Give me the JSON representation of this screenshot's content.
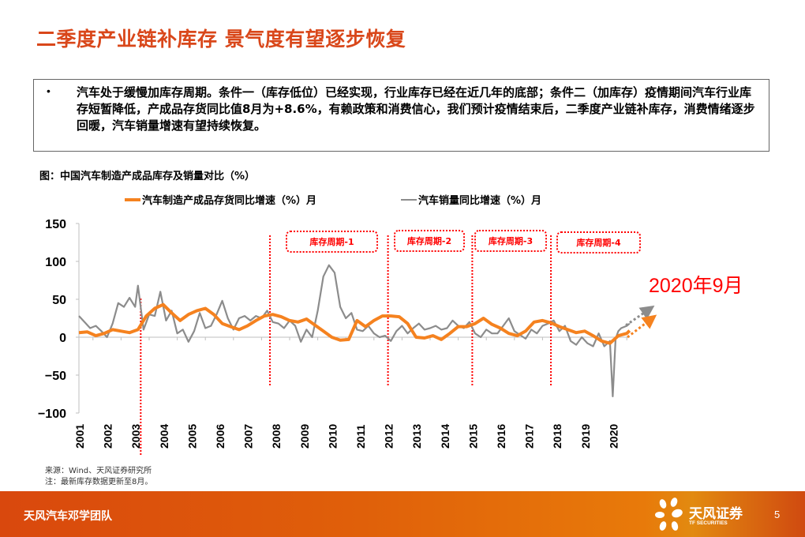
{
  "page": {
    "title": "二季度产业链补库存 景气度有望逐步恢复",
    "summary_bullet": "•",
    "summary_text": "汽车处于缓慢加库存周期。条件一（库存低位）已经实现，行业库存已经在近几年的底部；条件二（加库存）疫情期间汽车行业库存短暂降低，产成品存货同比值8月为+8.6%，有赖政策和消费信心，我们预计疫情结束后，二季度产业链补库存，消费情绪逐步回暖，汽车销量增速有望持续恢复。",
    "chart_caption": "图：中国汽车制造产成品库存及销量对比（%）",
    "source_line1": "来源：Wind、天风证券研究所",
    "source_line2": "注：最新库存数据更新至8月。",
    "annotation": "2020年9月"
  },
  "footer": {
    "team": "天风汽车邓学团队",
    "brand": "天风证券",
    "brand_sub": "TF SECURITIES",
    "page_number": "5"
  },
  "colors": {
    "title": "#d9471a",
    "inventory_series": "#f5821f",
    "sales_series": "#8c8c8c",
    "cycle_marker": "#ff0000",
    "footer": "#e0600a"
  },
  "chart_data": {
    "type": "line",
    "title": "图：中国汽车制造产成品库存及销量对比（%）",
    "xlabel": "",
    "ylabel": "",
    "ylim": [
      -100,
      150
    ],
    "yticks": [
      150,
      100,
      50,
      0,
      -50,
      -100
    ],
    "categories": [
      "2001",
      "2002",
      "2003",
      "2004",
      "2005",
      "2006",
      "2007",
      "2008",
      "2009",
      "2010",
      "2011",
      "2012",
      "2013",
      "2014",
      "2015",
      "2016",
      "2017",
      "2018",
      "2019",
      "2020"
    ],
    "legend_position": "top",
    "grid": false,
    "series": [
      {
        "name": "汽车制造产成品存货同比增速（%）月",
        "color": "#f5821f",
        "x": [
          2001.0,
          2001.3,
          2001.6,
          2001.9,
          2002.2,
          2002.5,
          2002.8,
          2003.1,
          2003.4,
          2003.7,
          2004.0,
          2004.3,
          2004.6,
          2004.9,
          2005.2,
          2005.5,
          2005.8,
          2006.1,
          2006.4,
          2006.7,
          2007.0,
          2007.3,
          2007.6,
          2007.9,
          2008.2,
          2008.5,
          2008.8,
          2009.1,
          2009.4,
          2009.7,
          2010.0,
          2010.3,
          2010.6,
          2010.9,
          2011.2,
          2011.5,
          2011.8,
          2012.1,
          2012.4,
          2012.7,
          2013.0,
          2013.3,
          2013.6,
          2013.9,
          2014.2,
          2014.5,
          2014.8,
          2015.1,
          2015.4,
          2015.7,
          2016.0,
          2016.3,
          2016.6,
          2016.9,
          2017.2,
          2017.5,
          2017.8,
          2018.1,
          2018.4,
          2018.7,
          2019.0,
          2019.3,
          2019.6,
          2019.9,
          2020.2,
          2020.5,
          2020.6
        ],
        "values": [
          6,
          7,
          2,
          5,
          10,
          8,
          6,
          10,
          28,
          38,
          43,
          32,
          22,
          30,
          35,
          38,
          30,
          18,
          14,
          10,
          15,
          22,
          28,
          30,
          27,
          22,
          20,
          24,
          16,
          8,
          0,
          -4,
          -3,
          22,
          14,
          22,
          28,
          28,
          27,
          18,
          0,
          -1,
          2,
          -3,
          5,
          14,
          14,
          18,
          25,
          17,
          12,
          5,
          2,
          8,
          20,
          22,
          19,
          14,
          10,
          6,
          8,
          2,
          -5,
          -8,
          2,
          5,
          8.6
        ]
      },
      {
        "name": "汽车销量同比增速（%）月",
        "color": "#8c8c8c",
        "x": [
          2001.0,
          2001.2,
          2001.4,
          2001.6,
          2001.8,
          2002.0,
          2002.2,
          2002.4,
          2002.6,
          2002.8,
          2003.0,
          2003.1,
          2003.3,
          2003.5,
          2003.7,
          2003.9,
          2004.1,
          2004.3,
          2004.5,
          2004.7,
          2004.9,
          2005.1,
          2005.3,
          2005.5,
          2005.7,
          2005.9,
          2006.1,
          2006.3,
          2006.5,
          2006.7,
          2006.9,
          2007.1,
          2007.3,
          2007.5,
          2007.7,
          2007.9,
          2008.1,
          2008.3,
          2008.5,
          2008.7,
          2008.9,
          2009.1,
          2009.3,
          2009.5,
          2009.7,
          2009.9,
          2010.1,
          2010.3,
          2010.5,
          2010.7,
          2010.9,
          2011.1,
          2011.3,
          2011.5,
          2011.7,
          2011.9,
          2012.1,
          2012.3,
          2012.5,
          2012.7,
          2012.9,
          2013.1,
          2013.3,
          2013.5,
          2013.7,
          2013.9,
          2014.1,
          2014.3,
          2014.5,
          2014.7,
          2014.9,
          2015.1,
          2015.3,
          2015.5,
          2015.7,
          2015.9,
          2016.1,
          2016.3,
          2016.5,
          2016.7,
          2016.9,
          2017.1,
          2017.3,
          2017.5,
          2017.7,
          2017.9,
          2018.1,
          2018.3,
          2018.5,
          2018.7,
          2018.9,
          2019.1,
          2019.3,
          2019.5,
          2019.7,
          2019.9,
          2020.0,
          2020.1,
          2020.2,
          2020.3,
          2020.5,
          2020.6
        ],
        "values": [
          28,
          20,
          12,
          15,
          8,
          0,
          18,
          45,
          40,
          52,
          40,
          68,
          10,
          30,
          28,
          60,
          22,
          35,
          5,
          10,
          -6,
          8,
          32,
          12,
          15,
          30,
          48,
          25,
          10,
          25,
          28,
          22,
          28,
          25,
          35,
          20,
          18,
          12,
          22,
          15,
          -6,
          10,
          0,
          35,
          80,
          95,
          85,
          40,
          25,
          32,
          10,
          8,
          15,
          5,
          0,
          2,
          -5,
          8,
          15,
          5,
          12,
          18,
          10,
          12,
          15,
          10,
          12,
          22,
          15,
          12,
          20,
          5,
          0,
          10,
          5,
          5,
          15,
          25,
          8,
          3,
          -2,
          10,
          5,
          15,
          18,
          22,
          8,
          15,
          -5,
          -10,
          0,
          -8,
          -12,
          5,
          -12,
          -5,
          -78,
          -2,
          8,
          12,
          15,
          18
        ]
      }
    ],
    "inventory_cycles": [
      {
        "label": "库存周期-1",
        "start": 2008.0,
        "end": 2012.0
      },
      {
        "label": "库存周期-2",
        "start": 2012.0,
        "end": 2015.0
      },
      {
        "label": "库存周期-3",
        "start": 2015.0,
        "end": 2018.0
      },
      {
        "label": "库存周期-4",
        "start": 2018.0,
        "end": 2020.9
      }
    ],
    "cycle_divider_years": [
      2003.2,
      2007.8,
      2012.0,
      2015.0,
      2017.8
    ],
    "annotations": [
      "2020年9月"
    ]
  }
}
